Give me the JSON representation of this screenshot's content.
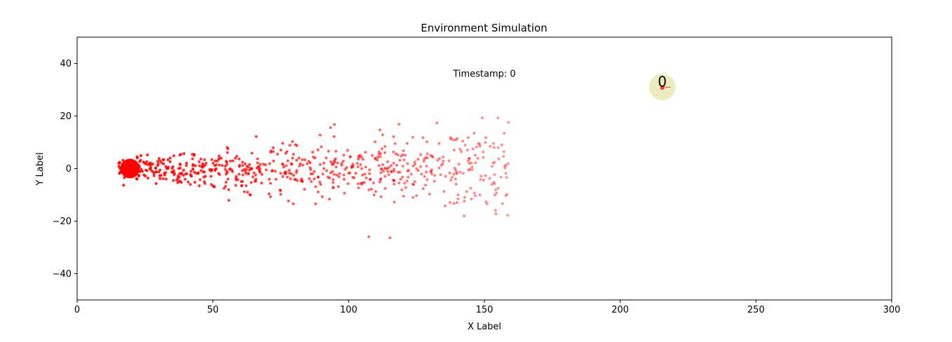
{
  "chart_data": {
    "type": "scatter",
    "title": "Environment Simulation",
    "xlabel": "X Label",
    "ylabel": "Y Label",
    "xlim": [
      0,
      300
    ],
    "ylim": [
      -50,
      50
    ],
    "grid": false,
    "x_ticks": [
      0,
      50,
      100,
      150,
      200,
      250,
      300
    ],
    "y_ticks": [
      -40,
      -20,
      0,
      20,
      40
    ],
    "x_tick_labels": [
      "0",
      "50",
      "100",
      "150",
      "200",
      "250",
      "300"
    ],
    "y_tick_labels": [
      "−40",
      "−20",
      "0",
      "20",
      "40"
    ],
    "annotation": "Timestamp: 0",
    "annotation_pos": [
      150,
      36
    ],
    "source": {
      "x": 19.5,
      "y": 0,
      "color": "#ff0000"
    },
    "agent": {
      "x": 215.5,
      "y": 31,
      "label": "0",
      "color": "#dddd88",
      "marker_color": "#e8483a"
    },
    "particle_color": "#ff0000",
    "particles": {
      "x_range": [
        15,
        159
      ],
      "y_extent": [
        -27,
        22
      ],
      "count": 700
    }
  }
}
